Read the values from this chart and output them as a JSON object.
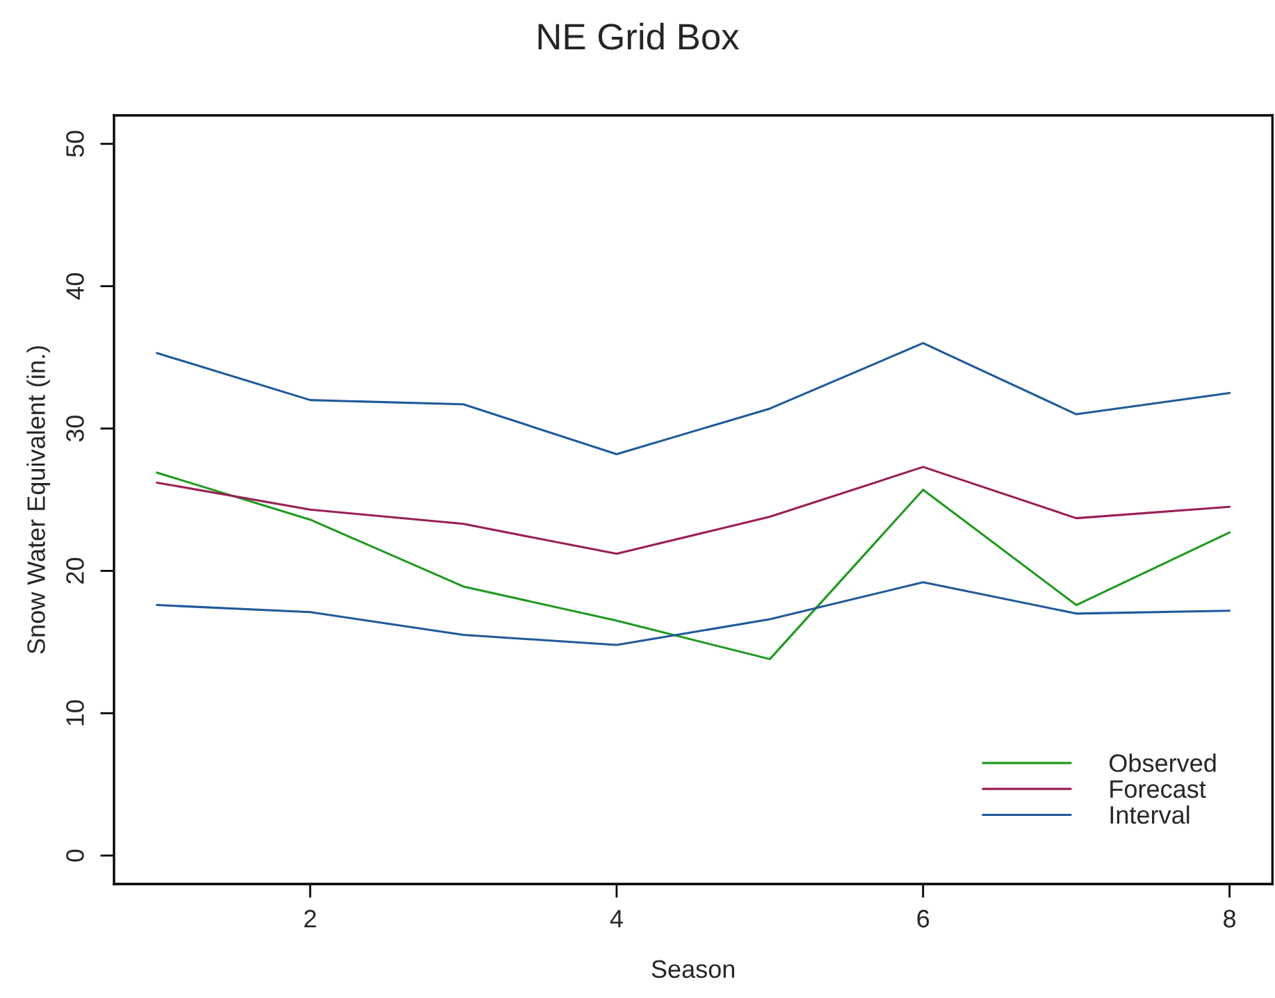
{
  "chart_data": {
    "type": "line",
    "title": "NE Grid Box",
    "xlabel": "Season",
    "ylabel": "Snow Water Equivalent (in.)",
    "x": [
      1,
      2,
      3,
      4,
      5,
      6,
      7,
      8
    ],
    "series": [
      {
        "name": "Observed",
        "color": "#1e9a1e",
        "values": [
          26.9,
          23.6,
          18.9,
          16.5,
          13.8,
          25.7,
          17.6,
          22.7
        ]
      },
      {
        "name": "Forecast",
        "color": "#9a1f55",
        "values": [
          26.2,
          24.3,
          23.3,
          21.2,
          23.8,
          27.3,
          23.7,
          24.5
        ]
      },
      {
        "name": "Interval",
        "color": "#1f5a9a",
        "values": [
          35.3,
          32.0,
          31.7,
          28.2,
          31.4,
          36.0,
          31.0,
          32.5
        ]
      },
      {
        "color": "#1f5a9a",
        "values": [
          17.6,
          17.1,
          15.5,
          14.8,
          16.6,
          19.2,
          17.0,
          17.2
        ]
      }
    ],
    "xlim": [
      0.72,
      8.28
    ],
    "ylim": [
      -2,
      52
    ],
    "xticks": [
      2,
      4,
      6,
      8
    ],
    "yticks": [
      0,
      10,
      20,
      30,
      40,
      50
    ],
    "legend": "bottom right",
    "grid": false,
    "marker": "none",
    "line_style": "solid"
  }
}
